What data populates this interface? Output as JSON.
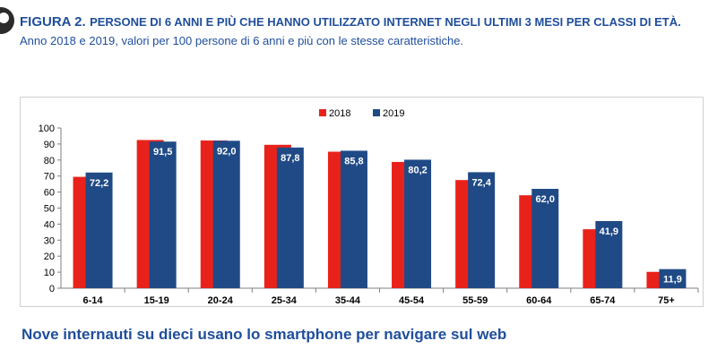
{
  "header": {
    "figure_label": "FIGURA 2.",
    "title": "PERSONE DI 6 ANNI E PIÙ CHE HANNO UTILIZZATO INTERNET NEGLI ULTIMI 3 MESI PER CLASSI DI ETÀ.",
    "subtitle": "Anno 2018 e 2019, valori per 100 persone di 6 anni e più con le stesse caratteristiche."
  },
  "footer": {
    "caption": "Nove internauti su dieci usano lo smartphone per navigare sul web"
  },
  "colors": {
    "brand_blue": "#1f4e9b",
    "series_2018": "#e8221b",
    "series_2019": "#1f4a86"
  },
  "chart_data": {
    "type": "bar",
    "categories": [
      "6-14",
      "15-19",
      "20-24",
      "25-34",
      "35-44",
      "45-54",
      "55-59",
      "60-64",
      "65-74",
      "75+"
    ],
    "series": [
      {
        "name": "2018",
        "values": [
          69.5,
          92.5,
          92.2,
          89.5,
          85.2,
          78.8,
          67.5,
          58.0,
          36.8,
          10.2
        ]
      },
      {
        "name": "2019",
        "values": [
          72.2,
          91.5,
          92.0,
          87.8,
          85.8,
          80.2,
          72.4,
          62.0,
          41.9,
          11.9
        ]
      }
    ],
    "data_labels": [
      "72,2",
      "91,5",
      "92,0",
      "87,8",
      "85,8",
      "80,2",
      "72,4",
      "62,0",
      "41,9",
      "11,9"
    ],
    "y_ticks": [
      "0",
      "10",
      "20",
      "30",
      "40",
      "50",
      "60",
      "70",
      "80",
      "90",
      "100"
    ],
    "ylim": [
      0,
      100
    ],
    "grid": false,
    "legend_position": "top-center"
  }
}
